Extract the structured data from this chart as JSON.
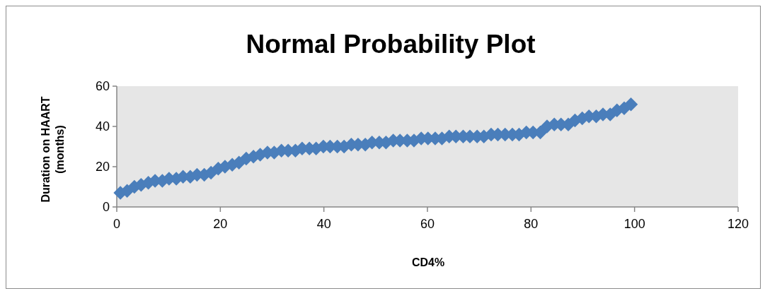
{
  "chart_data": {
    "type": "scatter",
    "title": "Normal Probability Plot",
    "xlabel": "CD4%",
    "ylabel": "Duration on HAART (months)",
    "xlim": [
      0,
      120
    ],
    "xticks": [
      0,
      20,
      40,
      60,
      80,
      100,
      120
    ],
    "ylim": [
      0,
      60
    ],
    "yticks": [
      0,
      20,
      40,
      60
    ],
    "marker": "diamond",
    "series": [
      {
        "color": "#4a7ebb",
        "x": [
          0.7,
          2.0,
          3.4,
          4.7,
          6.1,
          7.4,
          8.8,
          10.1,
          11.5,
          12.8,
          14.2,
          15.5,
          16.9,
          18.2,
          19.6,
          20.9,
          22.3,
          23.6,
          25.0,
          26.4,
          27.7,
          29.1,
          30.4,
          31.8,
          33.1,
          34.5,
          35.8,
          37.2,
          38.5,
          39.9,
          41.2,
          42.6,
          43.9,
          45.3,
          46.6,
          48.0,
          49.3,
          50.7,
          52.0,
          53.4,
          54.7,
          56.1,
          57.4,
          58.8,
          60.1,
          61.5,
          62.8,
          64.2,
          65.5,
          66.9,
          68.2,
          69.6,
          70.9,
          72.3,
          73.6,
          75.0,
          76.4,
          77.7,
          79.1,
          80.4,
          81.8,
          83.1,
          84.5,
          85.8,
          87.2,
          88.5,
          89.9,
          91.2,
          92.6,
          93.9,
          95.3,
          96.6,
          98.0,
          99.3
        ],
        "values": [
          7,
          8,
          10,
          11,
          12,
          13,
          13,
          14,
          14,
          15,
          15,
          16,
          16,
          17,
          19,
          20,
          21,
          22,
          24,
          25,
          26,
          27,
          27,
          28,
          28,
          28,
          29,
          29,
          29,
          30,
          30,
          30,
          30,
          31,
          31,
          31,
          32,
          32,
          32,
          33,
          33,
          33,
          33,
          34,
          34,
          34,
          34,
          35,
          35,
          35,
          35,
          35,
          35,
          36,
          36,
          36,
          36,
          36,
          37,
          37,
          37,
          40,
          41,
          41,
          41,
          43,
          44,
          45,
          45,
          46,
          46,
          48,
          49,
          51
        ]
      }
    ]
  }
}
